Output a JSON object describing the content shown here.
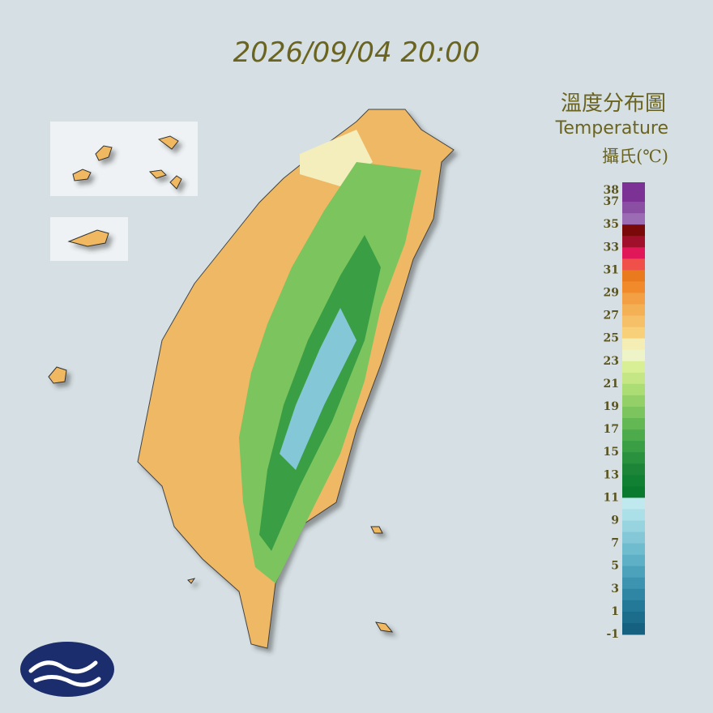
{
  "timestamp": "2026/09/04 20:00",
  "legend": {
    "title": "溫度分布圖",
    "subtitle": "Temperature",
    "unit": "攝氏(℃)",
    "labels": [
      38,
      37,
      35,
      33,
      31,
      29,
      27,
      25,
      23,
      21,
      19,
      17,
      15,
      13,
      11,
      9,
      7,
      5,
      3,
      1,
      -1
    ],
    "colors": [
      "#7b3294",
      "#8a4fa3",
      "#9b6bb3",
      "#7a0a0a",
      "#a0102a",
      "#e0185a",
      "#f0504a",
      "#ea7a1e",
      "#f08a2a",
      "#f2a043",
      "#f4b055",
      "#f6c068",
      "#f8d07a",
      "#f5eeb4",
      "#eef3c8",
      "#d8ef96",
      "#c4e684",
      "#acdc74",
      "#94d068",
      "#7cc45e",
      "#64b854",
      "#4eab4c",
      "#3a9e44",
      "#2a913e",
      "#1c8538",
      "#128032",
      "#0a7a2e",
      "#bfe9ee",
      "#ace0e8",
      "#98d4e0",
      "#84c8d8",
      "#70bccf",
      "#5eb0c6",
      "#4ca2bb",
      "#3c94b0",
      "#2e86a4",
      "#247898",
      "#1c6c8c",
      "#166080"
    ]
  }
}
